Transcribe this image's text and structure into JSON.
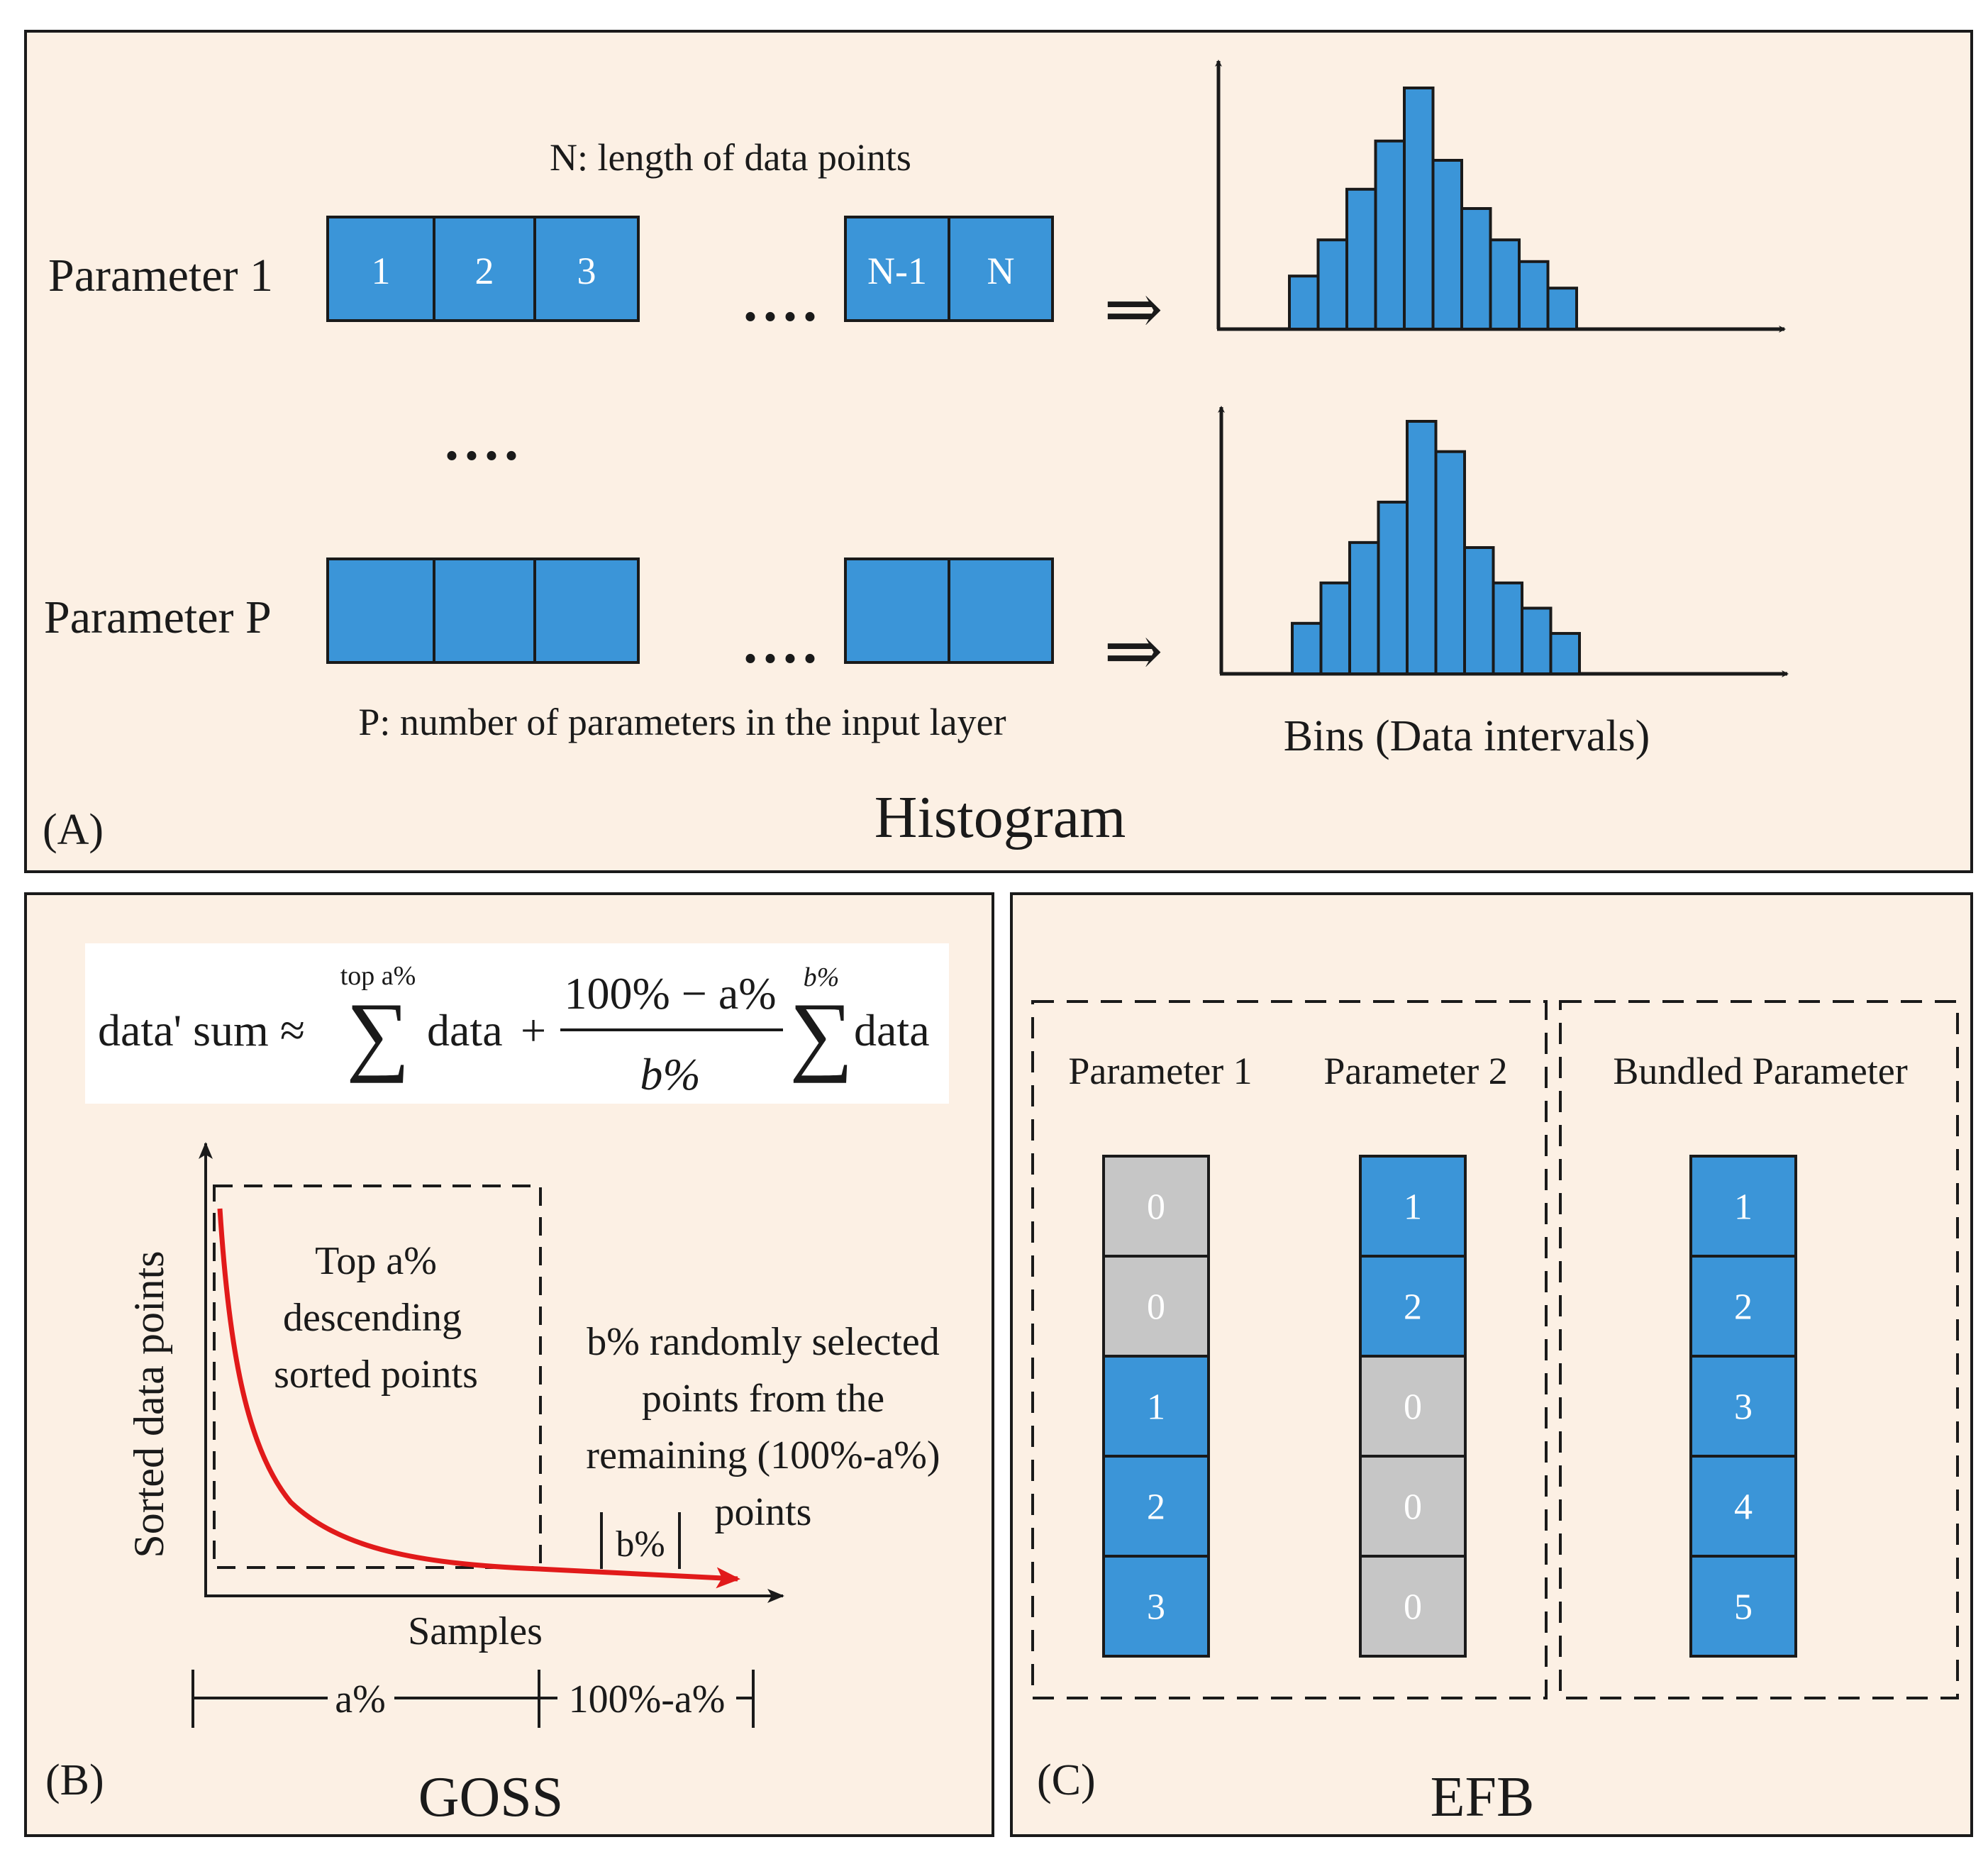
{
  "colors": {
    "panel_bg": "#fcf0e4",
    "cell_blue": "#3b95d8",
    "cell_gray": "#c6c6c6",
    "curve_red": "#e11a1a",
    "stroke": "#1a1a1a",
    "formula_bg": "#ffffff"
  },
  "panel_a": {
    "label": "(A)",
    "title": "Histogram",
    "n_caption": "N: length of data points",
    "p_caption": "P: number of parameters in the input layer",
    "param1_label": "Parameter 1",
    "paramP_label": "Parameter P",
    "row_ellipsis": "....",
    "vertical_ellipsis": "....",
    "cells_left": [
      "1",
      "2",
      "3"
    ],
    "cells_right": [
      "N-1",
      "N"
    ],
    "arrow_glyph": "⇒",
    "bins_label": "Bins (Data intervals)",
    "histogram_1": [
      0.22,
      0.37,
      0.58,
      0.78,
      1.0,
      0.7,
      0.5,
      0.37,
      0.28,
      0.17
    ],
    "histogram_2": [
      0.2,
      0.36,
      0.52,
      0.68,
      1.0,
      0.88,
      0.5,
      0.36,
      0.26,
      0.16
    ]
  },
  "panel_b": {
    "label": "(B)",
    "title": "GOSS",
    "formula": {
      "lhs": "data' sum ≈",
      "sum_sym": "∑",
      "sum1_limit": "top a%",
      "data1": "data",
      "plus": "+",
      "numerator": "100% − a%",
      "denominator": "b%",
      "sum2_limit": "b%",
      "data2": "data"
    },
    "y_axis_label": "Sorted data points",
    "x_axis_label": "Samples",
    "top_box_lines": [
      "Top a%",
      "descending",
      "sorted points"
    ],
    "random_lines": [
      "b% randomly selected",
      "points from the",
      "remaining (100%-a%)",
      "points"
    ],
    "b_marker": "b%",
    "range_a": "a%",
    "range_rest": "100%-a%"
  },
  "panel_c": {
    "label": "(C)",
    "title": "EFB",
    "param1_header": "Parameter 1",
    "param2_header": "Parameter 2",
    "bundled_header": "Bundled Parameter",
    "param1_cells": [
      "0",
      "0",
      "1",
      "2",
      "3"
    ],
    "param2_cells": [
      "1",
      "2",
      "0",
      "0",
      "0"
    ],
    "bundled_cells": [
      "1",
      "2",
      "3",
      "4",
      "5"
    ]
  }
}
